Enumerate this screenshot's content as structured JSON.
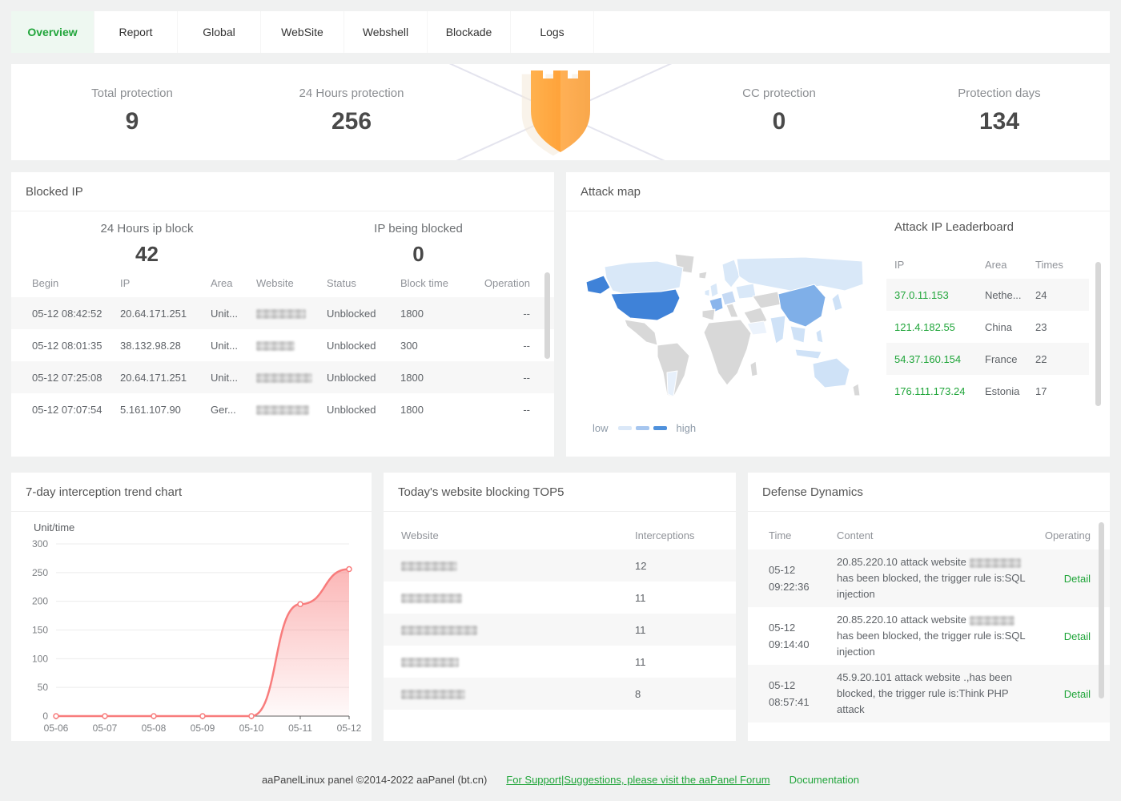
{
  "nav": {
    "tabs": [
      {
        "label": "Overview",
        "active": true
      },
      {
        "label": "Report",
        "active": false
      },
      {
        "label": "Global",
        "active": false
      },
      {
        "label": "WebSite",
        "active": false
      },
      {
        "label": "Webshell",
        "active": false
      },
      {
        "label": "Blockade",
        "active": false
      },
      {
        "label": "Logs",
        "active": false
      }
    ]
  },
  "stats": {
    "items": [
      {
        "label": "Total protection",
        "value": "9"
      },
      {
        "label": "24 Hours protection",
        "value": "256"
      },
      {
        "label": "CC protection",
        "value": "0"
      },
      {
        "label": "Protection days",
        "value": "134"
      }
    ],
    "shield_icon": "orange-castle-shield",
    "shield_color": "#f9a03a"
  },
  "blocked_ip": {
    "title": "Blocked IP",
    "stat_24h": {
      "label": "24 Hours ip block",
      "value": "42"
    },
    "stat_current": {
      "label": "IP being blocked",
      "value": "0"
    },
    "columns": [
      "Begin",
      "IP",
      "Area",
      "Website",
      "Status",
      "Block time",
      "Operation"
    ],
    "rows": [
      {
        "begin": "05-12 08:42:52",
        "ip": "20.64.171.251",
        "area": "Unit...",
        "website_censored": true,
        "status": "Unblocked",
        "block_time": "1800",
        "operation": "--"
      },
      {
        "begin": "05-12 08:01:35",
        "ip": "38.132.98.28",
        "area": "Unit...",
        "website_censored": true,
        "status": "Unblocked",
        "block_time": "300",
        "operation": "--"
      },
      {
        "begin": "05-12 07:25:08",
        "ip": "20.64.171.251",
        "area": "Unit...",
        "website_censored": true,
        "status": "Unblocked",
        "block_time": "1800",
        "operation": "--"
      },
      {
        "begin": "05-12 07:07:54",
        "ip": "5.161.107.90",
        "area": "Ger...",
        "website_censored": true,
        "status": "Unblocked",
        "block_time": "1800",
        "operation": "--"
      }
    ]
  },
  "attack_map": {
    "title": "Attack map",
    "legend": {
      "low": "low",
      "high": "high",
      "colors": [
        "#dbe8f8",
        "#a6c6ef",
        "#4f91dc"
      ]
    },
    "highlight_colors": {
      "none": "#d8d8d8",
      "low": "#d9e8f8",
      "mid": "#a6c6ef",
      "high": "#7fafe8",
      "max": "#3f82d8"
    },
    "leaderboard": {
      "title": "Attack IP Leaderboard",
      "columns": [
        "IP",
        "Area",
        "Times"
      ],
      "rows": [
        {
          "ip": "37.0.11.153",
          "area": "Nethe...",
          "times": "24"
        },
        {
          "ip": "121.4.182.55",
          "area": "China",
          "times": "23"
        },
        {
          "ip": "54.37.160.154",
          "area": "France",
          "times": "22"
        },
        {
          "ip": "176.111.173.24",
          "area": "Estonia",
          "times": "17"
        }
      ]
    }
  },
  "trend_panel": {
    "title": "7-day interception trend chart"
  },
  "chart_data": {
    "type": "line",
    "title": "7-day interception trend chart",
    "ylabel": "Unit/time",
    "xlabel": "",
    "x": [
      "05-06",
      "05-07",
      "05-08",
      "05-09",
      "05-10",
      "05-11",
      "05-12"
    ],
    "values": [
      0,
      0,
      0,
      0,
      0,
      195,
      256
    ],
    "yticks": [
      0,
      50,
      100,
      150,
      200,
      250,
      300
    ],
    "ylim": [
      0,
      300
    ],
    "line_color": "#f87c7c",
    "area": true,
    "grid": true,
    "legend_position": "none"
  },
  "top5": {
    "title": "Today's website blocking TOP5",
    "columns": [
      "Website",
      "Interceptions"
    ],
    "rows": [
      {
        "website_censored": true,
        "interceptions": "12"
      },
      {
        "website_censored": true,
        "interceptions": "11"
      },
      {
        "website_censored": true,
        "interceptions": "11"
      },
      {
        "website_censored": true,
        "interceptions": "11"
      },
      {
        "website_censored": true,
        "interceptions": "8"
      }
    ]
  },
  "defense": {
    "title": "Defense Dynamics",
    "columns": [
      "Time",
      "Content",
      "Operating"
    ],
    "rows": [
      {
        "time_date": "05-12",
        "time_clock": "09:22:36",
        "content_pre": "20.85.220.10 attack website",
        "content_censored": true,
        "content_post": "has been blocked, the trigger rule is:SQL injection",
        "action": "Detail"
      },
      {
        "time_date": "05-12",
        "time_clock": "09:14:40",
        "content_pre": "20.85.220.10 attack website",
        "content_censored": true,
        "content_post": "has been blocked, the trigger rule is:SQL injection",
        "action": "Detail"
      },
      {
        "time_date": "05-12",
        "time_clock": "08:57:41",
        "content_pre": "45.9.20.101 attack website .,has been blocked, the trigger rule is:Think PHP attack",
        "content_censored": false,
        "content_post": "",
        "action": "Detail"
      }
    ]
  },
  "footer": {
    "copyright": "aaPanelLinux panel ©2014-2022 aaPanel (bt.cn)",
    "forum_link": "For Support|Suggestions, please visit the aaPanel Forum",
    "docs_link": "Documentation"
  },
  "colors": {
    "accent_green": "#20a53a",
    "accent_green_bg": "#eef8f1",
    "trend_pink": "#f87c7c",
    "page_bg": "#f0f1f1",
    "map_us": "#3f82d8",
    "map_china": "#7fafe8"
  }
}
